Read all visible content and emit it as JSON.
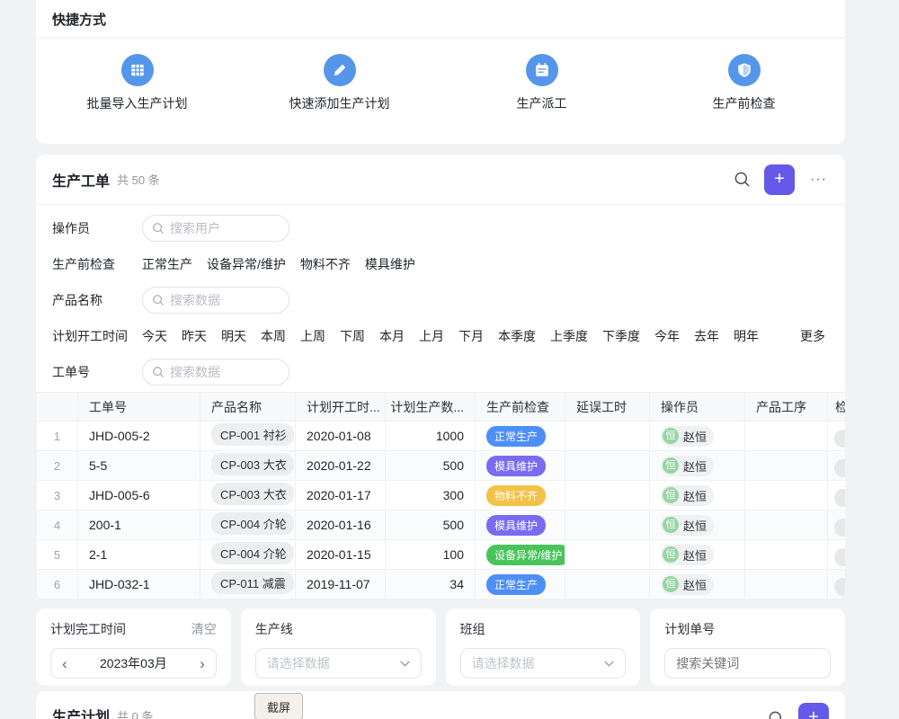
{
  "shortcuts": {
    "title": "快捷方式",
    "items": [
      {
        "label": "批量导入生产计划",
        "icon": "table-grid-icon"
      },
      {
        "label": "快速添加生产计划",
        "icon": "pencil-icon"
      },
      {
        "label": "生产派工",
        "icon": "calendar-icon"
      },
      {
        "label": "生产前检查",
        "icon": "shield-icon"
      }
    ]
  },
  "work_orders": {
    "title": "生产工单",
    "count_text": "共 50 条",
    "toolbar": {
      "more_label": "···"
    },
    "filters": {
      "operator": {
        "label": "操作员",
        "placeholder": "搜索用户"
      },
      "pre_check": {
        "label": "生产前检查",
        "options": [
          "正常生产",
          "设备异常/维护",
          "物料不齐",
          "模具维护"
        ]
      },
      "product_name": {
        "label": "产品名称",
        "placeholder": "搜索数据"
      },
      "plan_start": {
        "label": "计划开工时间",
        "options": [
          "今天",
          "昨天",
          "明天",
          "本周",
          "上周",
          "下周",
          "本月",
          "上月",
          "下月",
          "本季度",
          "上季度",
          "下季度",
          "今年",
          "去年",
          "明年"
        ],
        "more_label": "更多"
      },
      "order_no": {
        "label": "工单号",
        "placeholder": "搜索数据"
      }
    },
    "table": {
      "columns": [
        "",
        "工单号",
        "产品名称",
        "计划开工时...",
        "计划生产数...",
        "生产前检查",
        "延误工时",
        "操作员",
        "产品工序",
        "检"
      ],
      "rows": [
        {
          "index": "1",
          "order_no": "JHD-005-2",
          "product": "CP-001 衬衫",
          "start_date": "2020-01-08",
          "qty": "1000",
          "status": "正常生产",
          "status_color": "#4E8FF7",
          "delay": "",
          "operator": "赵恒",
          "operator_initial": "恒",
          "process": ""
        },
        {
          "index": "2",
          "order_no": "5-5",
          "product": "CP-003 大衣",
          "start_date": "2020-01-22",
          "qty": "500",
          "status": "模具维护",
          "status_color": "#7A6BF0",
          "delay": "",
          "operator": "赵恒",
          "operator_initial": "恒",
          "process": ""
        },
        {
          "index": "3",
          "order_no": "JHD-005-6",
          "product": "CP-003 大衣",
          "start_date": "2020-01-17",
          "qty": "300",
          "status": "物料不齐",
          "status_color": "#F2C249",
          "delay": "",
          "operator": "赵恒",
          "operator_initial": "恒",
          "process": ""
        },
        {
          "index": "4",
          "order_no": "200-1",
          "product": "CP-004 介轮",
          "start_date": "2020-01-16",
          "qty": "500",
          "status": "模具维护",
          "status_color": "#7A6BF0",
          "delay": "",
          "operator": "赵恒",
          "operator_initial": "恒",
          "process": ""
        },
        {
          "index": "5",
          "order_no": "2-1",
          "product": "CP-004 介轮",
          "start_date": "2020-01-15",
          "qty": "100",
          "status": "设备异常/维护",
          "status_color": "#49C45B",
          "delay": "",
          "operator": "赵恒",
          "operator_initial": "恒",
          "process": ""
        },
        {
          "index": "6",
          "order_no": "JHD-032-1",
          "product": "CP-011 减震",
          "start_date": "2019-11-07",
          "qty": "34",
          "status": "正常生产",
          "status_color": "#4E8FF7",
          "delay": "",
          "operator": "赵恒",
          "operator_initial": "恒",
          "process": ""
        }
      ]
    }
  },
  "bottom_filters": {
    "plan_finish": {
      "title": "计划完工时间",
      "action": "清空",
      "value": "2023年03月",
      "prev": "‹",
      "next": "›"
    },
    "production_line": {
      "title": "生产线",
      "placeholder": "请选择数据"
    },
    "team": {
      "title": "班组",
      "placeholder": "请选择数据"
    },
    "plan_no": {
      "title": "计划单号",
      "placeholder": "搜索关键词"
    }
  },
  "production_plan": {
    "title": "生产计划",
    "count_text": "共 0 条"
  },
  "overlay": {
    "screenshot_label": "截屏"
  },
  "colors": {
    "accent_purple": "#6459E8",
    "icon_blue": "#5596EA"
  }
}
